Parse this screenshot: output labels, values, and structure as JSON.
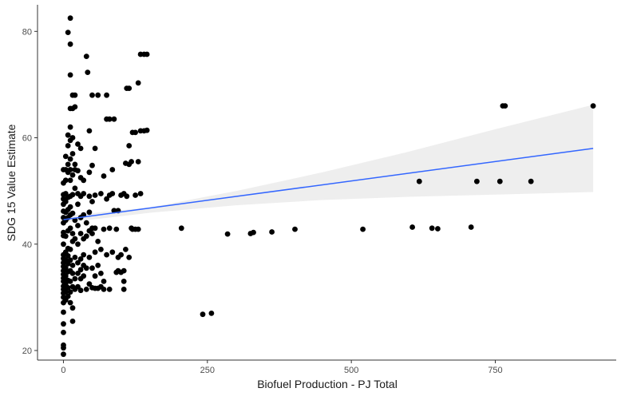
{
  "chart_data": {
    "type": "scatter",
    "title": "",
    "xlabel": "Biofuel Production - PJ Total",
    "ylabel": "SDG 15 Value Estimate",
    "xlim": [
      -45,
      960
    ],
    "ylim": [
      18.2,
      85
    ],
    "x_ticks": [
      0,
      250,
      500,
      750
    ],
    "y_ticks": [
      20,
      40,
      60,
      80
    ],
    "grid": false,
    "legend": "none",
    "colors": {
      "points": "#000000",
      "trend_line": "#3366FF",
      "confidence_band": "#EBEBEB",
      "axis": "#333333"
    },
    "points": [
      {
        "x": 0,
        "y": 19.3
      },
      {
        "x": 0,
        "y": 20.5
      },
      {
        "x": 0,
        "y": 21.0
      },
      {
        "x": 0,
        "y": 23.4
      },
      {
        "x": 0,
        "y": 25.0
      },
      {
        "x": 0,
        "y": 27.2
      },
      {
        "x": 0,
        "y": 29.0
      },
      {
        "x": 0,
        "y": 30.0
      },
      {
        "x": 0,
        "y": 30.8
      },
      {
        "x": 0,
        "y": 31.5
      },
      {
        "x": 0,
        "y": 32.1
      },
      {
        "x": 0,
        "y": 33.0
      },
      {
        "x": 0,
        "y": 33.6
      },
      {
        "x": 0,
        "y": 34.3
      },
      {
        "x": 0,
        "y": 35.0
      },
      {
        "x": 0,
        "y": 35.8
      },
      {
        "x": 0,
        "y": 36.5
      },
      {
        "x": 0,
        "y": 37.3
      },
      {
        "x": 0,
        "y": 38.0
      },
      {
        "x": 0,
        "y": 40.0
      },
      {
        "x": 0,
        "y": 41.6
      },
      {
        "x": 0,
        "y": 42.2
      },
      {
        "x": 0,
        "y": 44.0
      },
      {
        "x": 0,
        "y": 45.0
      },
      {
        "x": 0,
        "y": 46.2
      },
      {
        "x": 0,
        "y": 47.5
      },
      {
        "x": 0,
        "y": 48.5
      },
      {
        "x": 0,
        "y": 49.3
      },
      {
        "x": 0,
        "y": 51.5
      },
      {
        "x": 0,
        "y": 54.0
      },
      {
        "x": 4,
        "y": 29.5
      },
      {
        "x": 4,
        "y": 31.0
      },
      {
        "x": 4,
        "y": 32.5
      },
      {
        "x": 4,
        "y": 34.0
      },
      {
        "x": 4,
        "y": 35.5
      },
      {
        "x": 4,
        "y": 37.0
      },
      {
        "x": 4,
        "y": 38.5
      },
      {
        "x": 4,
        "y": 41.5
      },
      {
        "x": 4,
        "y": 44.5
      },
      {
        "x": 4,
        "y": 46.0
      },
      {
        "x": 4,
        "y": 48.0
      },
      {
        "x": 4,
        "y": 49.5
      },
      {
        "x": 4,
        "y": 52.0
      },
      {
        "x": 4,
        "y": 54.0
      },
      {
        "x": 4,
        "y": 56.5
      },
      {
        "x": 8,
        "y": 30.2
      },
      {
        "x": 8,
        "y": 31.8
      },
      {
        "x": 8,
        "y": 33.2
      },
      {
        "x": 8,
        "y": 34.8
      },
      {
        "x": 8,
        "y": 36.3
      },
      {
        "x": 8,
        "y": 37.8
      },
      {
        "x": 8,
        "y": 39.2
      },
      {
        "x": 8,
        "y": 42.5
      },
      {
        "x": 8,
        "y": 45.0
      },
      {
        "x": 8,
        "y": 46.5
      },
      {
        "x": 8,
        "y": 48.8
      },
      {
        "x": 8,
        "y": 53.5
      },
      {
        "x": 8,
        "y": 55.0
      },
      {
        "x": 8,
        "y": 58.5
      },
      {
        "x": 8,
        "y": 60.5
      },
      {
        "x": 8,
        "y": 79.8
      },
      {
        "x": 12,
        "y": 29.0
      },
      {
        "x": 12,
        "y": 31.0
      },
      {
        "x": 12,
        "y": 33.0
      },
      {
        "x": 12,
        "y": 35.0
      },
      {
        "x": 12,
        "y": 37.0
      },
      {
        "x": 12,
        "y": 39.0
      },
      {
        "x": 12,
        "y": 43.0
      },
      {
        "x": 12,
        "y": 45.5
      },
      {
        "x": 12,
        "y": 47.0
      },
      {
        "x": 12,
        "y": 49.0
      },
      {
        "x": 12,
        "y": 52.0
      },
      {
        "x": 12,
        "y": 54.0
      },
      {
        "x": 12,
        "y": 56.0
      },
      {
        "x": 12,
        "y": 59.5
      },
      {
        "x": 12,
        "y": 62.0
      },
      {
        "x": 12,
        "y": 65.5
      },
      {
        "x": 12,
        "y": 71.8
      },
      {
        "x": 12,
        "y": 77.6
      },
      {
        "x": 12,
        "y": 82.5
      },
      {
        "x": 16,
        "y": 25.5
      },
      {
        "x": 16,
        "y": 28.0
      },
      {
        "x": 16,
        "y": 32.0
      },
      {
        "x": 16,
        "y": 34.5
      },
      {
        "x": 16,
        "y": 36.0
      },
      {
        "x": 16,
        "y": 40.5
      },
      {
        "x": 16,
        "y": 42.0
      },
      {
        "x": 16,
        "y": 45.8
      },
      {
        "x": 16,
        "y": 49.3
      },
      {
        "x": 16,
        "y": 53.0
      },
      {
        "x": 16,
        "y": 57.0
      },
      {
        "x": 16,
        "y": 60.0
      },
      {
        "x": 16,
        "y": 65.5
      },
      {
        "x": 16,
        "y": 68.0
      },
      {
        "x": 20,
        "y": 31.5
      },
      {
        "x": 20,
        "y": 33.5
      },
      {
        "x": 20,
        "y": 37.5
      },
      {
        "x": 20,
        "y": 41.0
      },
      {
        "x": 20,
        "y": 44.5
      },
      {
        "x": 20,
        "y": 50.5
      },
      {
        "x": 20,
        "y": 54.0
      },
      {
        "x": 20,
        "y": 55.0
      },
      {
        "x": 20,
        "y": 65.8
      },
      {
        "x": 20,
        "y": 68.0
      },
      {
        "x": 25,
        "y": 32.0
      },
      {
        "x": 25,
        "y": 34.5
      },
      {
        "x": 25,
        "y": 36.5
      },
      {
        "x": 25,
        "y": 40.0
      },
      {
        "x": 25,
        "y": 43.5
      },
      {
        "x": 25,
        "y": 47.5
      },
      {
        "x": 25,
        "y": 49.5
      },
      {
        "x": 25,
        "y": 53.8
      },
      {
        "x": 25,
        "y": 58.8
      },
      {
        "x": 30,
        "y": 31.3
      },
      {
        "x": 30,
        "y": 33.5
      },
      {
        "x": 30,
        "y": 35.2
      },
      {
        "x": 30,
        "y": 37.2
      },
      {
        "x": 30,
        "y": 42.0
      },
      {
        "x": 30,
        "y": 45.0
      },
      {
        "x": 30,
        "y": 49.0
      },
      {
        "x": 30,
        "y": 52.5
      },
      {
        "x": 30,
        "y": 58.0
      },
      {
        "x": 35,
        "y": 34.0
      },
      {
        "x": 35,
        "y": 36.0
      },
      {
        "x": 35,
        "y": 38.0
      },
      {
        "x": 35,
        "y": 41.0
      },
      {
        "x": 35,
        "y": 45.5
      },
      {
        "x": 35,
        "y": 49.5
      },
      {
        "x": 35,
        "y": 52.0
      },
      {
        "x": 40,
        "y": 31.5
      },
      {
        "x": 40,
        "y": 35.5
      },
      {
        "x": 40,
        "y": 41.5
      },
      {
        "x": 40,
        "y": 44.0
      },
      {
        "x": 40,
        "y": 75.3
      },
      {
        "x": 42,
        "y": 72.3
      },
      {
        "x": 45,
        "y": 32.5
      },
      {
        "x": 45,
        "y": 37.5
      },
      {
        "x": 45,
        "y": 42.5
      },
      {
        "x": 45,
        "y": 46.0
      },
      {
        "x": 45,
        "y": 49.0
      },
      {
        "x": 45,
        "y": 53.5
      },
      {
        "x": 45,
        "y": 61.3
      },
      {
        "x": 50,
        "y": 31.8
      },
      {
        "x": 50,
        "y": 35.5
      },
      {
        "x": 50,
        "y": 42.0
      },
      {
        "x": 50,
        "y": 43.0
      },
      {
        "x": 50,
        "y": 48.0
      },
      {
        "x": 50,
        "y": 54.8
      },
      {
        "x": 50,
        "y": 68.0
      },
      {
        "x": 55,
        "y": 31.7
      },
      {
        "x": 55,
        "y": 34.0
      },
      {
        "x": 55,
        "y": 38.5
      },
      {
        "x": 55,
        "y": 43.0
      },
      {
        "x": 55,
        "y": 49.2
      },
      {
        "x": 55,
        "y": 58.0
      },
      {
        "x": 60,
        "y": 31.7
      },
      {
        "x": 60,
        "y": 36.0
      },
      {
        "x": 60,
        "y": 40.5
      },
      {
        "x": 60,
        "y": 68.0
      },
      {
        "x": 65,
        "y": 32.0
      },
      {
        "x": 65,
        "y": 34.5
      },
      {
        "x": 65,
        "y": 39.0
      },
      {
        "x": 65,
        "y": 49.5
      },
      {
        "x": 70,
        "y": 31.5
      },
      {
        "x": 70,
        "y": 33.0
      },
      {
        "x": 70,
        "y": 42.8
      },
      {
        "x": 70,
        "y": 52.8
      },
      {
        "x": 75,
        "y": 38.0
      },
      {
        "x": 75,
        "y": 48.5
      },
      {
        "x": 75,
        "y": 63.5
      },
      {
        "x": 75,
        "y": 68.0
      },
      {
        "x": 80,
        "y": 31.5
      },
      {
        "x": 80,
        "y": 43.0
      },
      {
        "x": 80,
        "y": 49.2
      },
      {
        "x": 80,
        "y": 63.5
      },
      {
        "x": 85,
        "y": 38.5
      },
      {
        "x": 85,
        "y": 49.5
      },
      {
        "x": 85,
        "y": 54.0
      },
      {
        "x": 88,
        "y": 46.3
      },
      {
        "x": 88,
        "y": 63.5
      },
      {
        "x": 92,
        "y": 34.7
      },
      {
        "x": 92,
        "y": 42.8
      },
      {
        "x": 95,
        "y": 35.0
      },
      {
        "x": 95,
        "y": 37.5
      },
      {
        "x": 95,
        "y": 46.3
      },
      {
        "x": 100,
        "y": 34.7
      },
      {
        "x": 100,
        "y": 38.0
      },
      {
        "x": 100,
        "y": 49.2
      },
      {
        "x": 105,
        "y": 31.5
      },
      {
        "x": 105,
        "y": 33.0
      },
      {
        "x": 105,
        "y": 35.0
      },
      {
        "x": 105,
        "y": 49.5
      },
      {
        "x": 108,
        "y": 39.0
      },
      {
        "x": 108,
        "y": 55.2
      },
      {
        "x": 110,
        "y": 49.0
      },
      {
        "x": 110,
        "y": 69.3
      },
      {
        "x": 114,
        "y": 37.5
      },
      {
        "x": 114,
        "y": 55.0
      },
      {
        "x": 114,
        "y": 58.5
      },
      {
        "x": 114,
        "y": 69.3
      },
      {
        "x": 118,
        "y": 43.0
      },
      {
        "x": 118,
        "y": 55.5
      },
      {
        "x": 120,
        "y": 42.8
      },
      {
        "x": 120,
        "y": 61.0
      },
      {
        "x": 125,
        "y": 42.8
      },
      {
        "x": 125,
        "y": 49.2
      },
      {
        "x": 125,
        "y": 61.0
      },
      {
        "x": 130,
        "y": 42.8
      },
      {
        "x": 130,
        "y": 55.5
      },
      {
        "x": 130,
        "y": 70.3
      },
      {
        "x": 134,
        "y": 49.5
      },
      {
        "x": 134,
        "y": 61.3
      },
      {
        "x": 134,
        "y": 75.7
      },
      {
        "x": 140,
        "y": 61.3
      },
      {
        "x": 140,
        "y": 75.7
      },
      {
        "x": 145,
        "y": 61.4
      },
      {
        "x": 145,
        "y": 75.7
      },
      {
        "x": 205,
        "y": 43.0
      },
      {
        "x": 242,
        "y": 26.8
      },
      {
        "x": 257,
        "y": 27.0
      },
      {
        "x": 285,
        "y": 41.9
      },
      {
        "x": 325,
        "y": 42.0
      },
      {
        "x": 330,
        "y": 42.2
      },
      {
        "x": 362,
        "y": 42.3
      },
      {
        "x": 402,
        "y": 42.8
      },
      {
        "x": 520,
        "y": 42.8
      },
      {
        "x": 606,
        "y": 43.2
      },
      {
        "x": 618,
        "y": 51.8
      },
      {
        "x": 640,
        "y": 43.0
      },
      {
        "x": 650,
        "y": 42.9
      },
      {
        "x": 708,
        "y": 43.2
      },
      {
        "x": 718,
        "y": 51.8
      },
      {
        "x": 758,
        "y": 51.8
      },
      {
        "x": 763,
        "y": 66.0
      },
      {
        "x": 767,
        "y": 66.0
      },
      {
        "x": 812,
        "y": 51.8
      },
      {
        "x": 920,
        "y": 66.0
      }
    ],
    "trend_line": [
      {
        "x": 0,
        "y": 44.6
      },
      {
        "x": 920,
        "y": 58.0
      }
    ],
    "confidence_band": [
      {
        "x": 0,
        "y_low": 44.0,
        "y_high": 45.3
      },
      {
        "x": 150,
        "y_low": 45.9,
        "y_high": 46.9
      },
      {
        "x": 300,
        "y_low": 47.3,
        "y_high": 50.0
      },
      {
        "x": 450,
        "y_low": 48.3,
        "y_high": 53.5
      },
      {
        "x": 600,
        "y_low": 48.9,
        "y_high": 57.4
      },
      {
        "x": 750,
        "y_low": 49.3,
        "y_high": 61.6
      },
      {
        "x": 920,
        "y_low": 49.8,
        "y_high": 66.2
      }
    ]
  }
}
